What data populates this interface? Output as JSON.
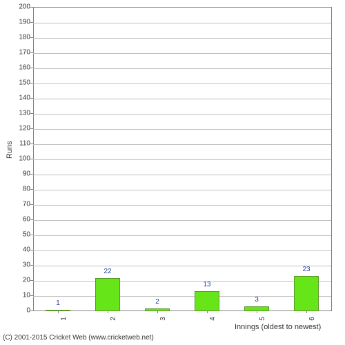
{
  "chart": {
    "type": "bar",
    "ylabel": "Runs",
    "xlabel": "Innings (oldest to newest)",
    "ylim": [
      0,
      200
    ],
    "ytick_step": 10,
    "categories": [
      "1",
      "2",
      "3",
      "4",
      "5",
      "6"
    ],
    "values": [
      1,
      22,
      2,
      13,
      3,
      23
    ],
    "bar_fill_color": "#66e619",
    "bar_border_color": "#5a9628",
    "bar_width_ratio": 0.5,
    "grid_color": "#c0c0c0",
    "axis_color": "#808080",
    "label_color": "#2040a0",
    "tick_fontsize": 10,
    "label_fontsize": 11,
    "background_color": "#ffffff"
  },
  "copyright": "(C) 2001-2015 Cricket Web (www.cricketweb.net)"
}
